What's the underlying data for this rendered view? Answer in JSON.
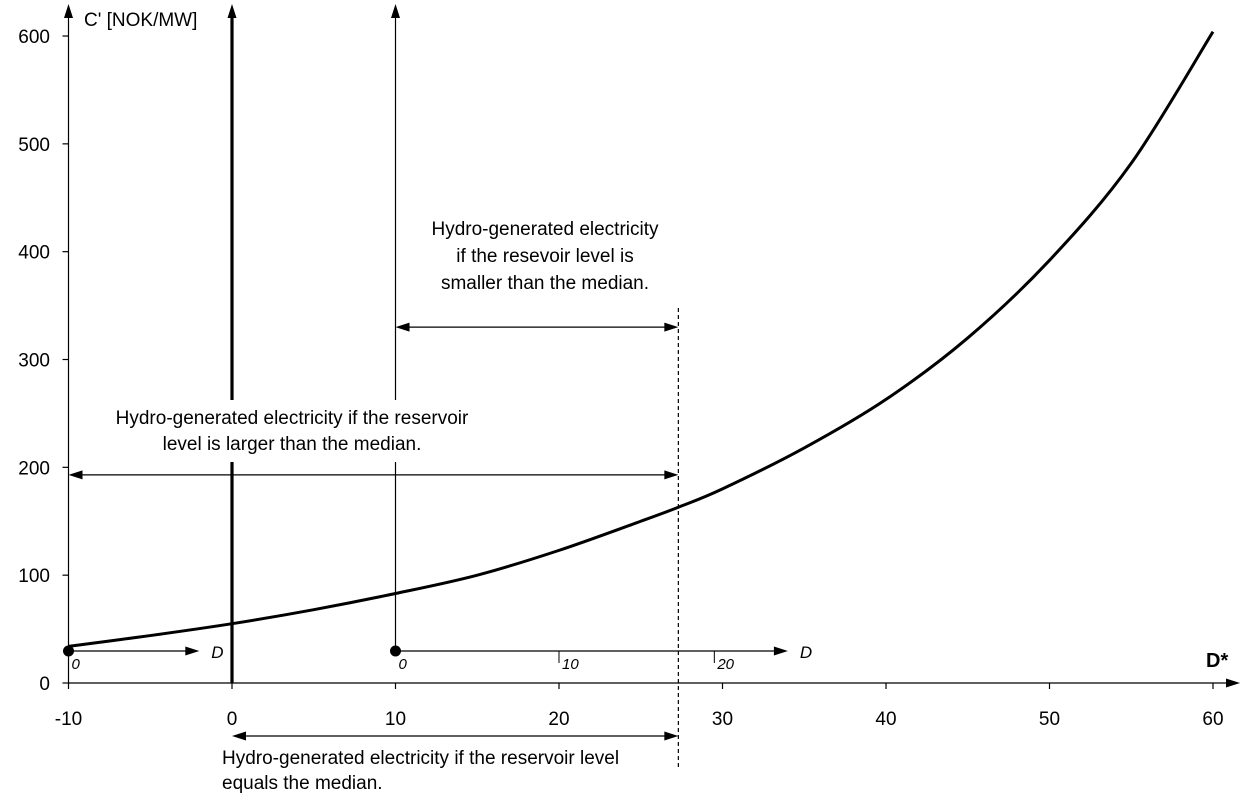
{
  "chart_data": {
    "type": "line",
    "ylabel": "C' [NOK/MW]",
    "xlabel": "D*",
    "xlim": [
      -10,
      60
    ],
    "ylim": [
      0,
      600
    ],
    "x_ticks": [
      "-10",
      "0",
      "10",
      "20",
      "30",
      "40",
      "50",
      "60"
    ],
    "y_ticks": [
      "0",
      "100",
      "200",
      "300",
      "400",
      "500",
      "600"
    ],
    "grid": false,
    "series": [
      {
        "points": [
          [
            -10,
            34
          ],
          [
            -5,
            44
          ],
          [
            0,
            55
          ],
          [
            5,
            68
          ],
          [
            10,
            83
          ],
          [
            15,
            100
          ],
          [
            20,
            123
          ],
          [
            25,
            150
          ],
          [
            27.3,
            163
          ],
          [
            30,
            180
          ],
          [
            35,
            218
          ],
          [
            40,
            263
          ],
          [
            45,
            320
          ],
          [
            50,
            392
          ],
          [
            55,
            482
          ],
          [
            60,
            604
          ]
        ]
      }
    ],
    "sub_axes": [
      {
        "origin_x": -10,
        "ticks": [
          "0"
        ],
        "end_x": -2,
        "label": "D"
      },
      {
        "origin_x": 10,
        "ticks": [
          "0",
          "10",
          "20"
        ],
        "tick_x": [
          10,
          20,
          29.5
        ],
        "end_x": 34,
        "label": "D"
      }
    ],
    "reference_lines": {
      "dashed_x": 27.3
    },
    "annotations": [
      {
        "text_lines": [
          "Hydro-generated electricity",
          "if the resevoir level is",
          "smaller than the median."
        ],
        "arrow_from_x": 10,
        "arrow_to_x": 27.3,
        "arrow_y": 330
      },
      {
        "text_lines": [
          "Hydro-generated electricity if the reservoir",
          "level is larger than the median."
        ],
        "arrow_from_x": -10,
        "arrow_to_x": 27.3,
        "arrow_y": 193
      },
      {
        "text_lines": [
          "Hydro-generated electricity if the reservoir level",
          "equals the median."
        ],
        "arrow_from_x": 0,
        "arrow_to_x": 27.3
      }
    ]
  }
}
